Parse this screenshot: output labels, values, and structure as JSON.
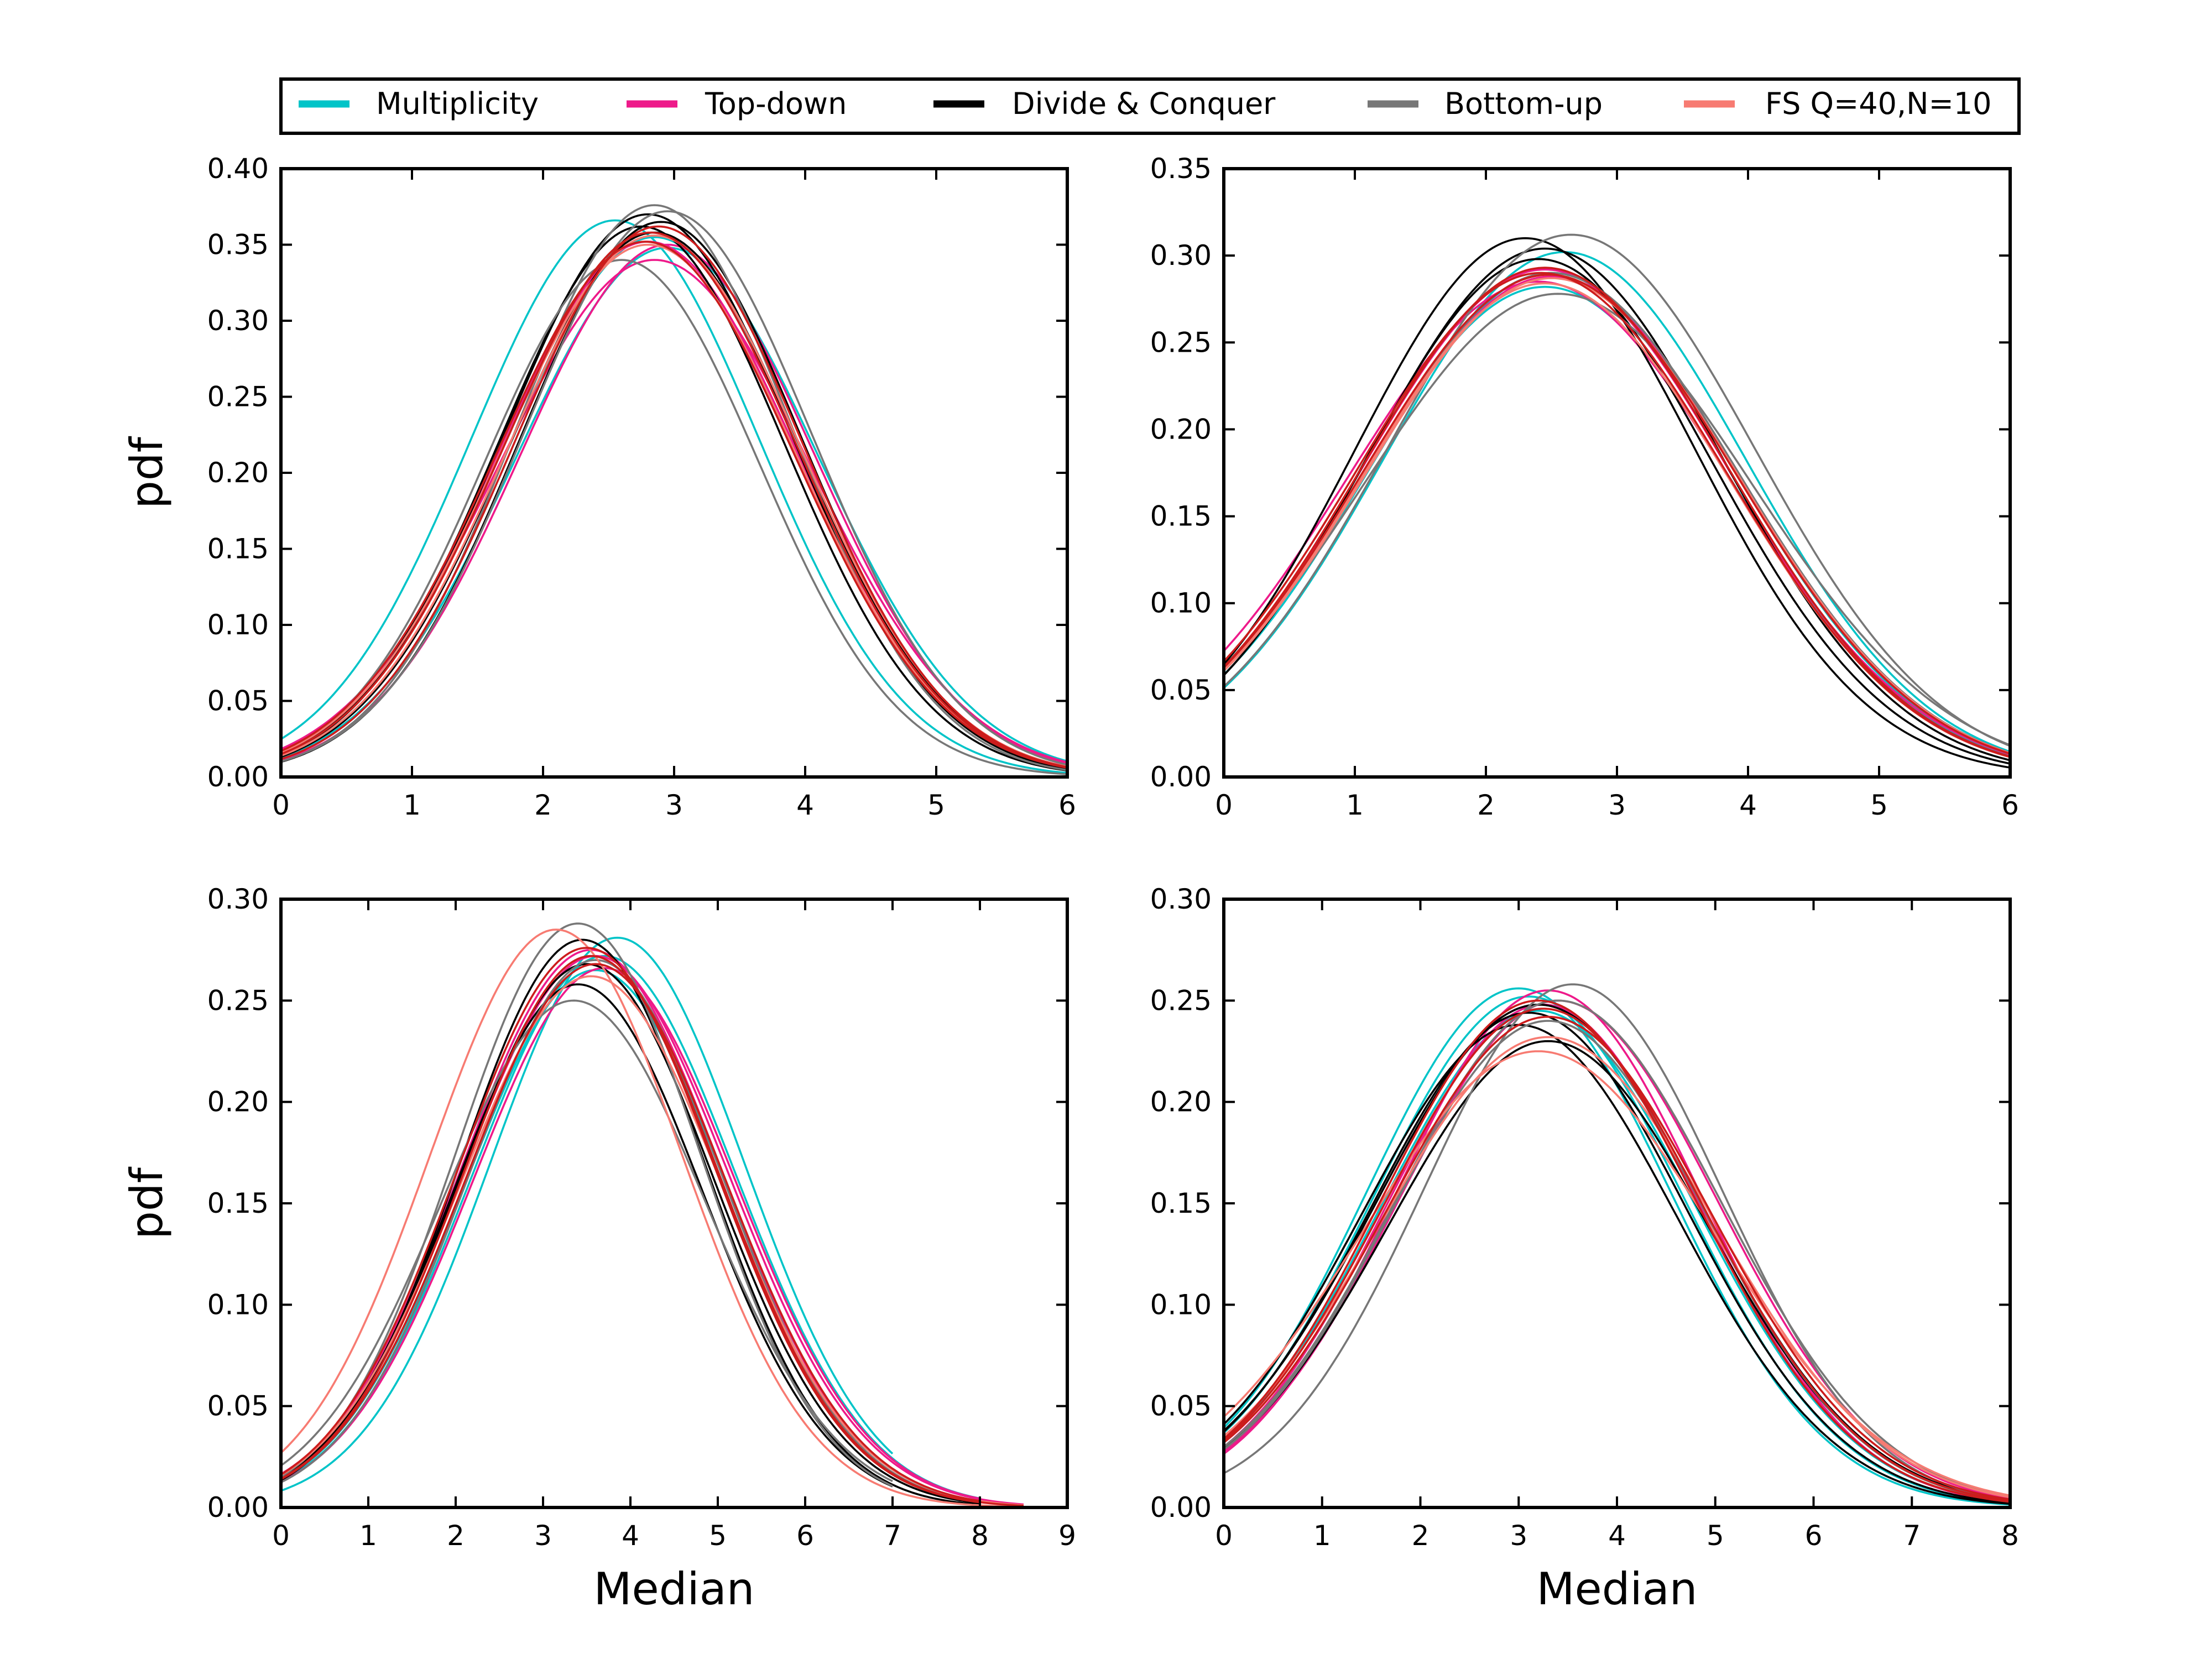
{
  "legend": {
    "entries": [
      {
        "label": "Multiplicity",
        "color": "#00c4c8"
      },
      {
        "label": "Top-down",
        "color": "#ee1a8a"
      },
      {
        "label": "Divide & Conquer",
        "color": "#000000"
      },
      {
        "label": "Bottom-up",
        "color": "#777777"
      },
      {
        "label": "FS Q=40,N=10",
        "color": "#f77b72"
      }
    ]
  },
  "chart_data": [
    {
      "type": "line",
      "xlabel": "",
      "ylabel": "pdf",
      "xlim": [
        0,
        6
      ],
      "ylim": [
        0,
        0.4
      ],
      "xticks": [
        "0",
        "1",
        "2",
        "3",
        "4",
        "5",
        "6"
      ],
      "yticks": [
        "0.00",
        "0.05",
        "0.10",
        "0.15",
        "0.20",
        "0.25",
        "0.30",
        "0.35",
        "0.40"
      ],
      "series": [
        {
          "group": "Multiplicity",
          "color": "#00c4c8",
          "params": [
            [
              2.55,
              1.1,
              0.366
            ],
            [
              2.95,
              1.15,
              0.348
            ],
            [
              2.85,
              1.12,
              0.355
            ]
          ]
        },
        {
          "group": "Top-down",
          "color": "#ee1a8a",
          "params": [
            [
              2.85,
              1.18,
              0.34
            ],
            [
              2.8,
              1.14,
              0.352
            ],
            [
              2.95,
              1.12,
              0.35
            ]
          ]
        },
        {
          "group": "Divide & Conquer",
          "color": "#000000",
          "params": [
            [
              2.8,
              1.1,
              0.37
            ],
            [
              2.9,
              1.08,
              0.365
            ],
            [
              2.75,
              1.09,
              0.362
            ],
            [
              2.85,
              1.11,
              0.358
            ]
          ]
        },
        {
          "group": "Bottom-up",
          "color": "#777777",
          "params": [
            [
              2.6,
              1.05,
              0.34
            ],
            [
              2.85,
              1.06,
              0.376
            ],
            [
              2.95,
              1.1,
              0.372
            ]
          ]
        },
        {
          "group": "FS Q=40,N=10",
          "color": "#f77b72",
          "params": [
            [
              2.85,
              1.12,
              0.356
            ],
            [
              2.8,
              1.13,
              0.35
            ]
          ]
        },
        {
          "group": "FS Q=40,N=10 (dark)",
          "color": "#cc1c1c",
          "params": [
            [
              2.82,
              1.12,
              0.358
            ],
            [
              2.88,
              1.1,
              0.362
            ],
            [
              2.78,
              1.13,
              0.352
            ]
          ]
        }
      ]
    },
    {
      "type": "line",
      "xlabel": "",
      "ylabel": "",
      "xlim": [
        0,
        6
      ],
      "ylim": [
        0,
        0.35
      ],
      "xticks": [
        "0",
        "1",
        "2",
        "3",
        "4",
        "5",
        "6"
      ],
      "yticks": [
        "0.00",
        "0.05",
        "0.10",
        "0.15",
        "0.20",
        "0.25",
        "0.30",
        "0.35"
      ],
      "series": [
        {
          "group": "Multiplicity",
          "color": "#00c4c8",
          "params": [
            [
              2.6,
              1.38,
              0.302
            ],
            [
              2.5,
              1.4,
              0.29
            ],
            [
              2.45,
              1.42,
              0.282
            ]
          ]
        },
        {
          "group": "Top-down",
          "color": "#ee1a8a",
          "params": [
            [
              2.4,
              1.45,
              0.285
            ],
            [
              2.5,
              1.42,
              0.288
            ],
            [
              2.45,
              1.4,
              0.292
            ]
          ]
        },
        {
          "group": "Divide & Conquer",
          "color": "#000000",
          "params": [
            [
              2.3,
              1.3,
              0.31
            ],
            [
              2.45,
              1.35,
              0.304
            ],
            [
              2.4,
              1.33,
              0.298
            ]
          ]
        },
        {
          "group": "Bottom-up",
          "color": "#777777",
          "params": [
            [
              2.65,
              1.4,
              0.312
            ],
            [
              2.55,
              1.48,
              0.278
            ],
            [
              2.5,
              1.42,
              0.29
            ]
          ]
        },
        {
          "group": "FS Q=40,N=10",
          "color": "#f77b72",
          "params": [
            [
              2.5,
              1.42,
              0.287
            ],
            [
              2.45,
              1.4,
              0.284
            ]
          ]
        },
        {
          "group": "FS Q=40,N=10 (dark)",
          "color": "#cc1c1c",
          "params": [
            [
              2.45,
              1.4,
              0.293
            ],
            [
              2.48,
              1.42,
              0.289
            ],
            [
              2.42,
              1.41,
              0.29
            ]
          ]
        }
      ]
    },
    {
      "type": "line",
      "xlabel": "Median",
      "ylabel": "pdf",
      "xlim": [
        0,
        9
      ],
      "ylim": [
        0,
        0.3
      ],
      "xticks": [
        "0",
        "1",
        "2",
        "3",
        "4",
        "5",
        "6",
        "7",
        "8",
        "9"
      ],
      "yticks": [
        "0.00",
        "0.05",
        "0.10",
        "0.15",
        "0.20",
        "0.25",
        "0.30"
      ],
      "series": [
        {
          "group": "Multiplicity",
          "color": "#00c4c8",
          "params": [
            [
              3.85,
              1.45,
              0.281,
              7.0
            ],
            [
              3.7,
              1.5,
              0.272,
              8.0
            ],
            [
              3.6,
              1.48,
              0.265,
              8.0
            ]
          ]
        },
        {
          "group": "Top-down",
          "color": "#ee1a8a",
          "params": [
            [
              3.7,
              1.5,
              0.266,
              8.0
            ],
            [
              3.6,
              1.52,
              0.272,
              8.5
            ],
            [
              3.55,
              1.49,
              0.275,
              8.0
            ]
          ]
        },
        {
          "group": "Divide & Conquer",
          "color": "#000000",
          "params": [
            [
              3.45,
              1.4,
              0.28,
              8.0
            ],
            [
              3.5,
              1.45,
              0.268,
              8.0
            ],
            [
              3.4,
              1.42,
              0.258,
              7.0
            ]
          ]
        },
        {
          "group": "Bottom-up",
          "color": "#777777",
          "params": [
            [
              3.4,
              1.4,
              0.288,
              7.0
            ],
            [
              3.35,
              1.5,
              0.25,
              7.0
            ],
            [
              3.6,
              1.45,
              0.27,
              8.0
            ]
          ]
        },
        {
          "group": "FS Q=40,N=10",
          "color": "#f77b72",
          "params": [
            [
              3.15,
              1.45,
              0.285,
              9.0
            ],
            [
              3.55,
              1.5,
              0.262,
              8.5
            ]
          ]
        },
        {
          "group": "FS Q=40,N=10 (dark)",
          "color": "#cc1c1c",
          "params": [
            [
              3.55,
              1.46,
              0.272,
              8.5
            ],
            [
              3.6,
              1.48,
              0.268,
              8.0
            ],
            [
              3.5,
              1.47,
              0.276,
              8.0
            ]
          ]
        }
      ]
    },
    {
      "type": "line",
      "xlabel": "Median",
      "ylabel": "",
      "xlim": [
        0,
        8
      ],
      "ylim": [
        0,
        0.3
      ],
      "xticks": [
        "0",
        "1",
        "2",
        "3",
        "4",
        "5",
        "6",
        "7",
        "8"
      ],
      "yticks": [
        "0.00",
        "0.05",
        "0.10",
        "0.15",
        "0.20",
        "0.25",
        "0.30"
      ],
      "series": [
        {
          "group": "Multiplicity",
          "color": "#00c4c8",
          "params": [
            [
              3.0,
              1.55,
              0.256
            ],
            [
              3.1,
              1.58,
              0.252
            ],
            [
              3.2,
              1.6,
              0.245
            ]
          ]
        },
        {
          "group": "Top-down",
          "color": "#ee1a8a",
          "params": [
            [
              3.3,
              1.55,
              0.255
            ],
            [
              3.4,
              1.62,
              0.25
            ],
            [
              3.25,
              1.58,
              0.248
            ]
          ]
        },
        {
          "group": "Divide & Conquer",
          "color": "#000000",
          "params": [
            [
              3.2,
              1.65,
              0.248
            ],
            [
              3.0,
              1.6,
              0.238
            ],
            [
              3.3,
              1.62,
              0.23
            ],
            [
              3.1,
              1.6,
              0.244
            ]
          ]
        },
        {
          "group": "Bottom-up",
          "color": "#777777",
          "params": [
            [
              3.55,
              1.52,
              0.258
            ],
            [
              3.3,
              1.6,
              0.24
            ],
            [
              3.4,
              1.65,
              0.25
            ]
          ]
        },
        {
          "group": "FS Q=40,N=10",
          "color": "#f77b72",
          "params": [
            [
              3.2,
              1.78,
              0.225
            ],
            [
              3.3,
              1.7,
              0.232
            ]
          ]
        },
        {
          "group": "FS Q=40,N=10 (dark)",
          "color": "#cc1c1c",
          "params": [
            [
              3.25,
              1.62,
              0.246
            ],
            [
              3.3,
              1.64,
              0.242
            ],
            [
              3.2,
              1.6,
              0.25
            ]
          ]
        }
      ]
    }
  ]
}
